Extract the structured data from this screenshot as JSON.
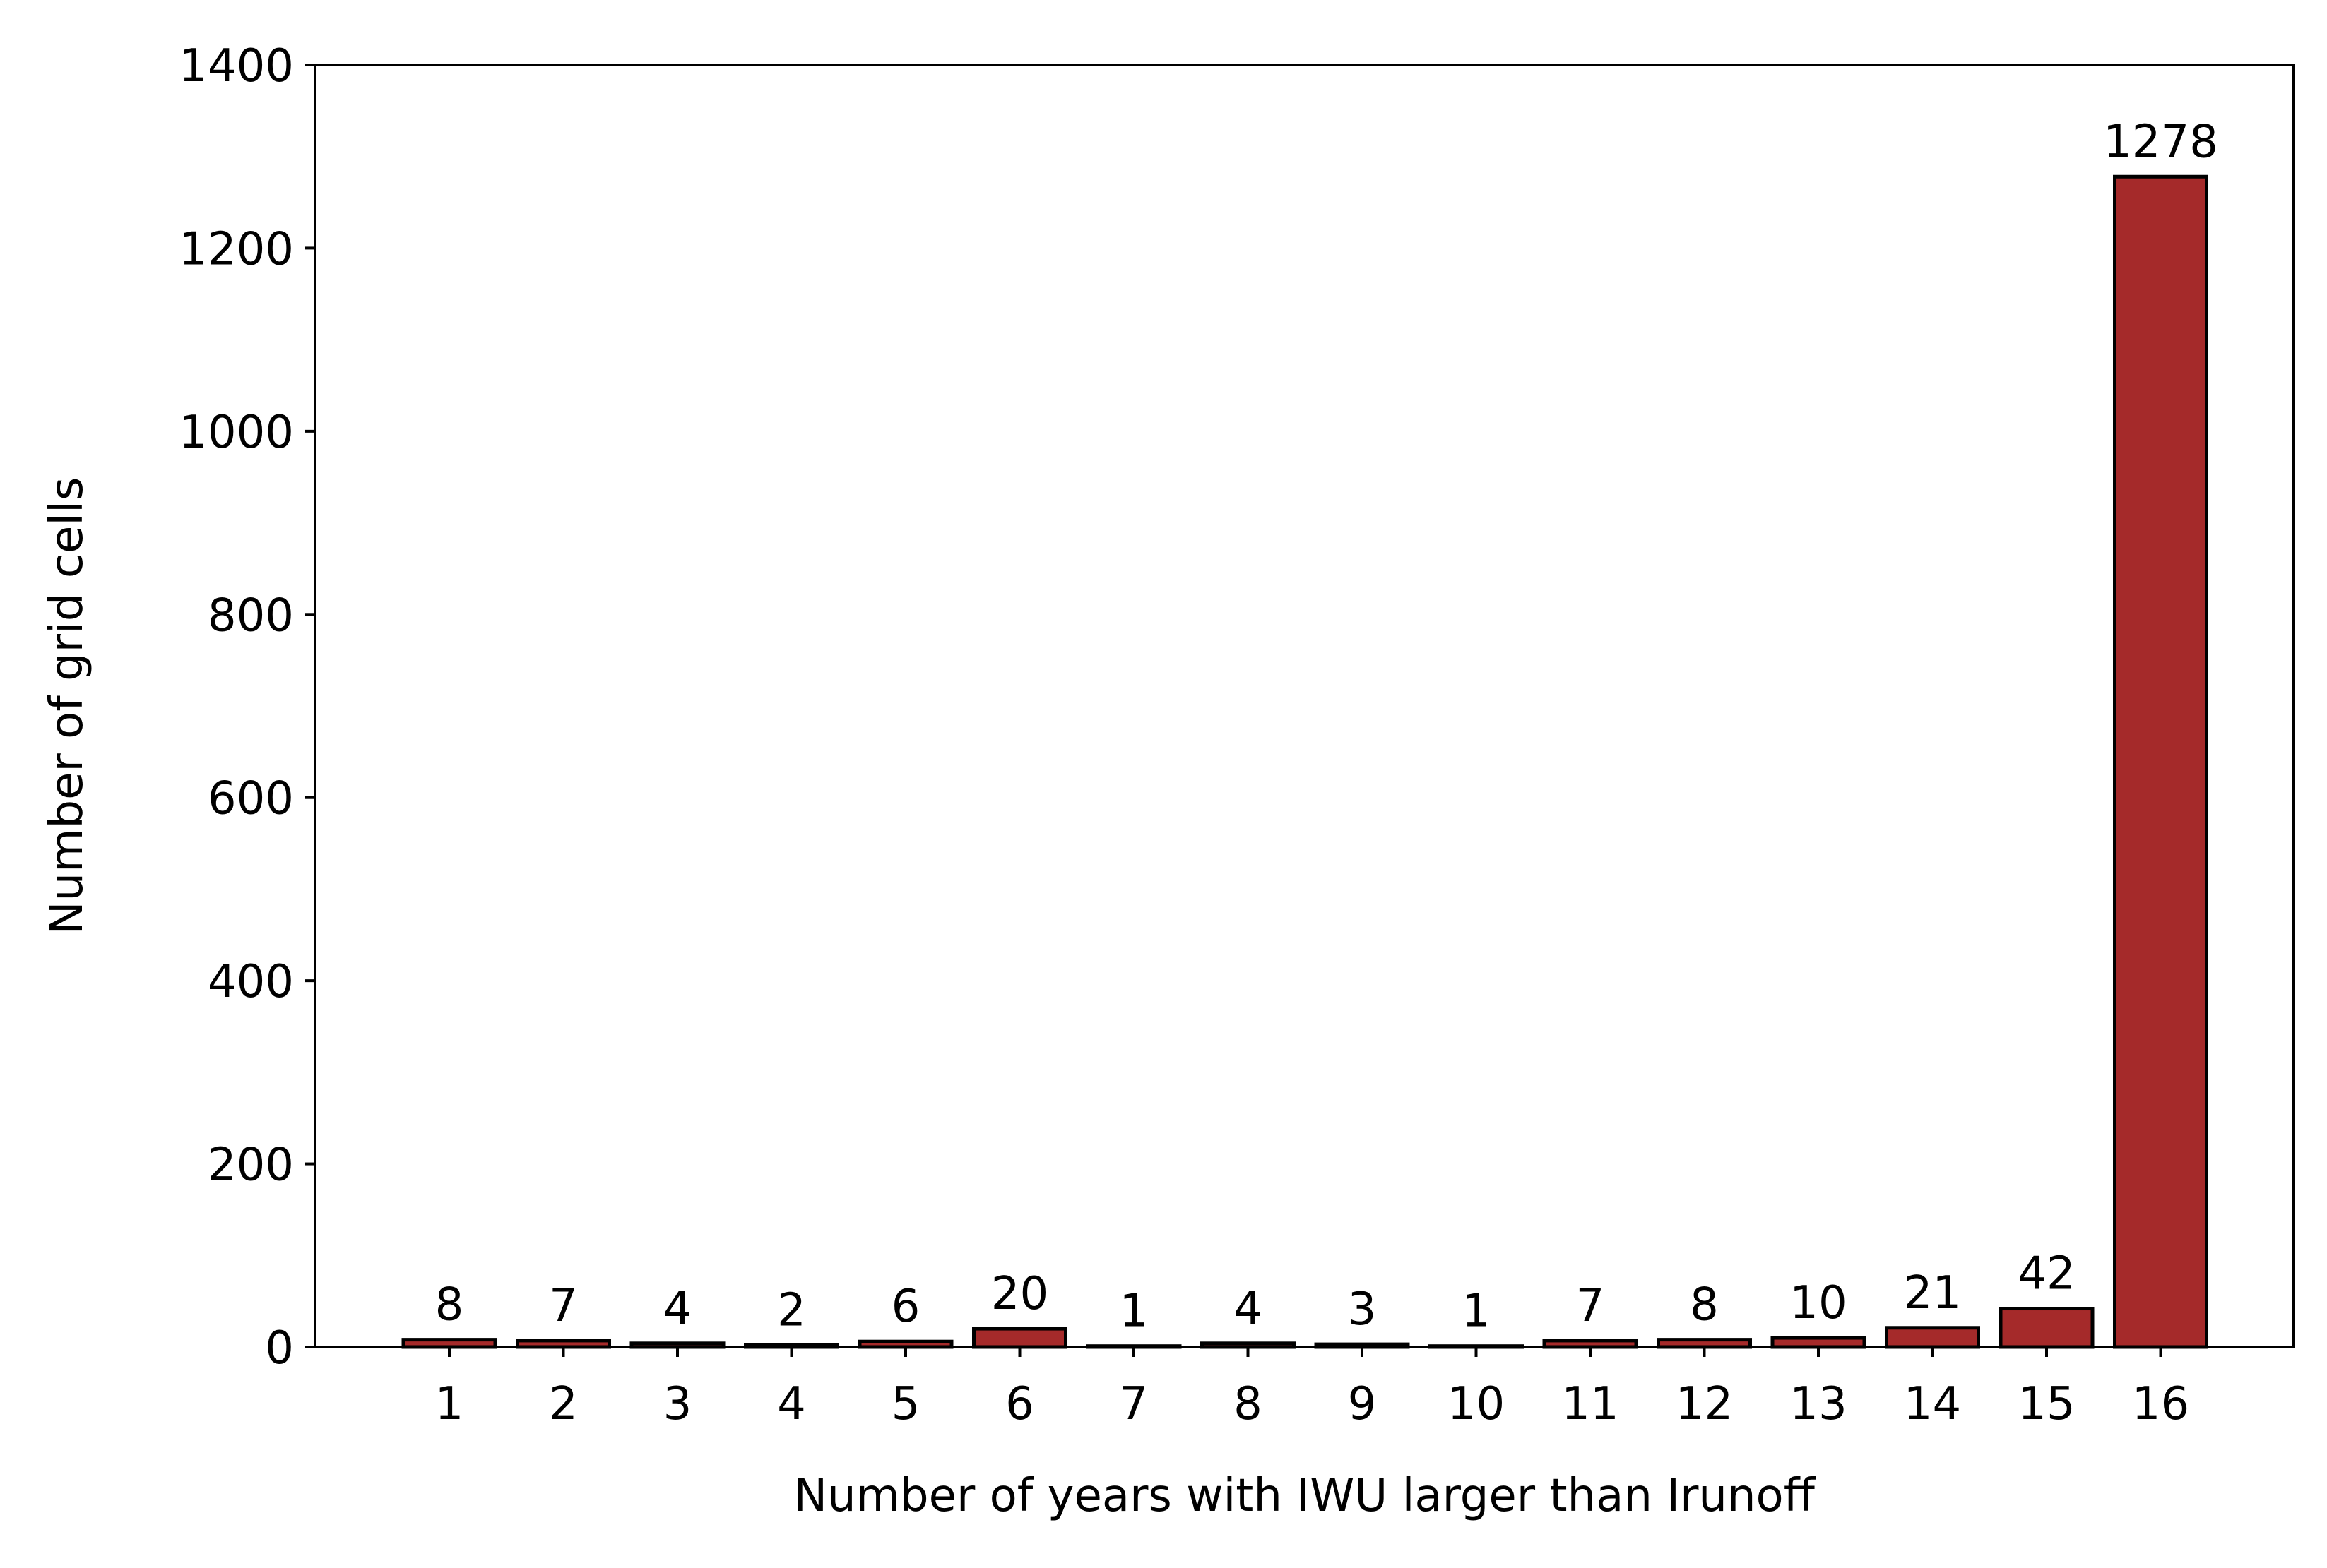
{
  "chart_data": {
    "type": "bar",
    "xlabel": "Number of years with IWU larger than Irunoff",
    "ylabel": "Number of grid cells",
    "categories": [
      "1",
      "2",
      "3",
      "4",
      "5",
      "6",
      "7",
      "8",
      "9",
      "10",
      "11",
      "12",
      "13",
      "14",
      "15",
      "16"
    ],
    "values": [
      8,
      7,
      4,
      2,
      6,
      20,
      1,
      4,
      3,
      1,
      7,
      8,
      10,
      21,
      42,
      1278
    ],
    "data_labels": [
      "8",
      "7",
      "4",
      "2",
      "6",
      "20",
      "1",
      "4",
      "3",
      "1",
      "7",
      "8",
      "10",
      "21",
      "42",
      "1278"
    ],
    "ylim": [
      0,
      1400
    ],
    "y_ticks": [
      0,
      200,
      400,
      600,
      800,
      1000,
      1200,
      1400
    ],
    "y_tick_labels": [
      "0",
      "200",
      "400",
      "600",
      "800",
      "1000",
      "1200",
      "1400"
    ],
    "grid": false,
    "legend": "none",
    "bar_color": "#a52a2a",
    "bar_edge_color": "#000000"
  }
}
